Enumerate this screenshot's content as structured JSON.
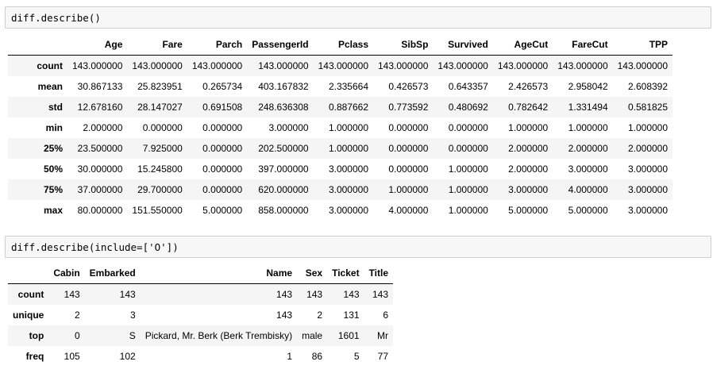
{
  "cell1": {
    "code": "diff.describe()"
  },
  "table1": {
    "columns": [
      "Age",
      "Fare",
      "Parch",
      "PassengerId",
      "Pclass",
      "SibSp",
      "Survived",
      "AgeCut",
      "FareCut",
      "TPP"
    ],
    "rows": [
      {
        "index": "count",
        "values": [
          "143.000000",
          "143.000000",
          "143.000000",
          "143.000000",
          "143.000000",
          "143.000000",
          "143.000000",
          "143.000000",
          "143.000000",
          "143.000000"
        ]
      },
      {
        "index": "mean",
        "values": [
          "30.867133",
          "25.823951",
          "0.265734",
          "403.167832",
          "2.335664",
          "0.426573",
          "0.643357",
          "2.426573",
          "2.958042",
          "2.608392"
        ]
      },
      {
        "index": "std",
        "values": [
          "12.678160",
          "28.147027",
          "0.691508",
          "248.636308",
          "0.887662",
          "0.773592",
          "0.480692",
          "0.782642",
          "1.331494",
          "0.581825"
        ]
      },
      {
        "index": "min",
        "values": [
          "2.000000",
          "0.000000",
          "0.000000",
          "3.000000",
          "1.000000",
          "0.000000",
          "0.000000",
          "1.000000",
          "1.000000",
          "1.000000"
        ]
      },
      {
        "index": "25%",
        "values": [
          "23.500000",
          "7.925000",
          "0.000000",
          "202.500000",
          "1.000000",
          "0.000000",
          "0.000000",
          "2.000000",
          "2.000000",
          "2.000000"
        ]
      },
      {
        "index": "50%",
        "values": [
          "30.000000",
          "15.245800",
          "0.000000",
          "397.000000",
          "3.000000",
          "0.000000",
          "1.000000",
          "2.000000",
          "3.000000",
          "3.000000"
        ]
      },
      {
        "index": "75%",
        "values": [
          "37.000000",
          "29.700000",
          "0.000000",
          "620.000000",
          "3.000000",
          "1.000000",
          "1.000000",
          "3.000000",
          "4.000000",
          "3.000000"
        ]
      },
      {
        "index": "max",
        "values": [
          "80.000000",
          "151.550000",
          "5.000000",
          "858.000000",
          "3.000000",
          "4.000000",
          "1.000000",
          "5.000000",
          "5.000000",
          "3.000000"
        ]
      }
    ]
  },
  "cell2": {
    "code": "diff.describe(include=['O'])"
  },
  "table2": {
    "columns": [
      "Cabin",
      "Embarked",
      "Name",
      "Sex",
      "Ticket",
      "Title"
    ],
    "rows": [
      {
        "index": "count",
        "values": [
          "143",
          "143",
          "143",
          "143",
          "143",
          "143"
        ]
      },
      {
        "index": "unique",
        "values": [
          "2",
          "3",
          "143",
          "2",
          "131",
          "6"
        ]
      },
      {
        "index": "top",
        "values": [
          "0",
          "S",
          "Pickard, Mr. Berk (Berk Trembisky)",
          "male",
          "1601",
          "Mr"
        ]
      },
      {
        "index": "freq",
        "values": [
          "105",
          "102",
          "1",
          "86",
          "5",
          "77"
        ]
      }
    ]
  }
}
